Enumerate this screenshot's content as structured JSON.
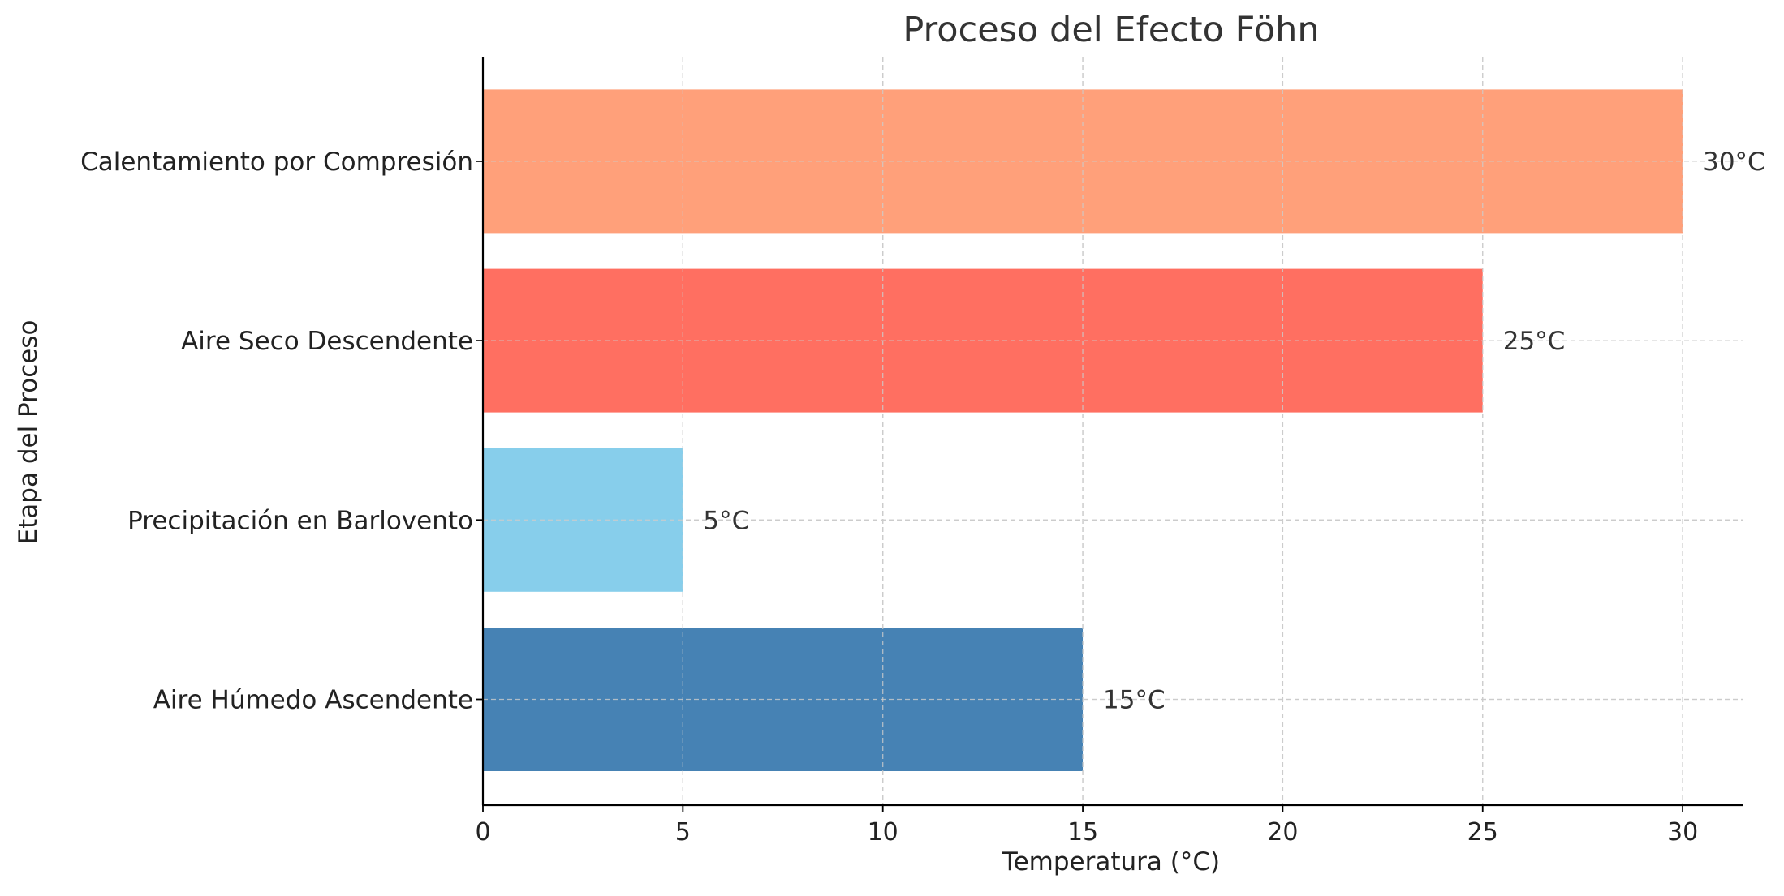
{
  "chart_data": {
    "type": "bar",
    "orientation": "horizontal",
    "title": "Proceso del Efecto Föhn",
    "xlabel": "Temperatura (°C)",
    "ylabel": "Etapa del Proceso",
    "categories": [
      "Aire Húmedo Ascendente",
      "Precipitación en Barlovento",
      "Aire Seco Descendente",
      "Calentamiento por Compresión"
    ],
    "values": [
      15,
      5,
      25,
      30
    ],
    "value_labels": [
      "15°C",
      "5°C",
      "25°C",
      "30°C"
    ],
    "colors": [
      "#4682b4",
      "#87ceeb",
      "#ff6f61",
      "#ffa07a"
    ],
    "xlim": [
      0,
      31.5
    ],
    "xticks": [
      0,
      5,
      10,
      15,
      20,
      25,
      30
    ],
    "xtick_labels": [
      "0",
      "5",
      "10",
      "15",
      "20",
      "25",
      "30"
    ],
    "grid": true,
    "grid_style": "dashed"
  }
}
